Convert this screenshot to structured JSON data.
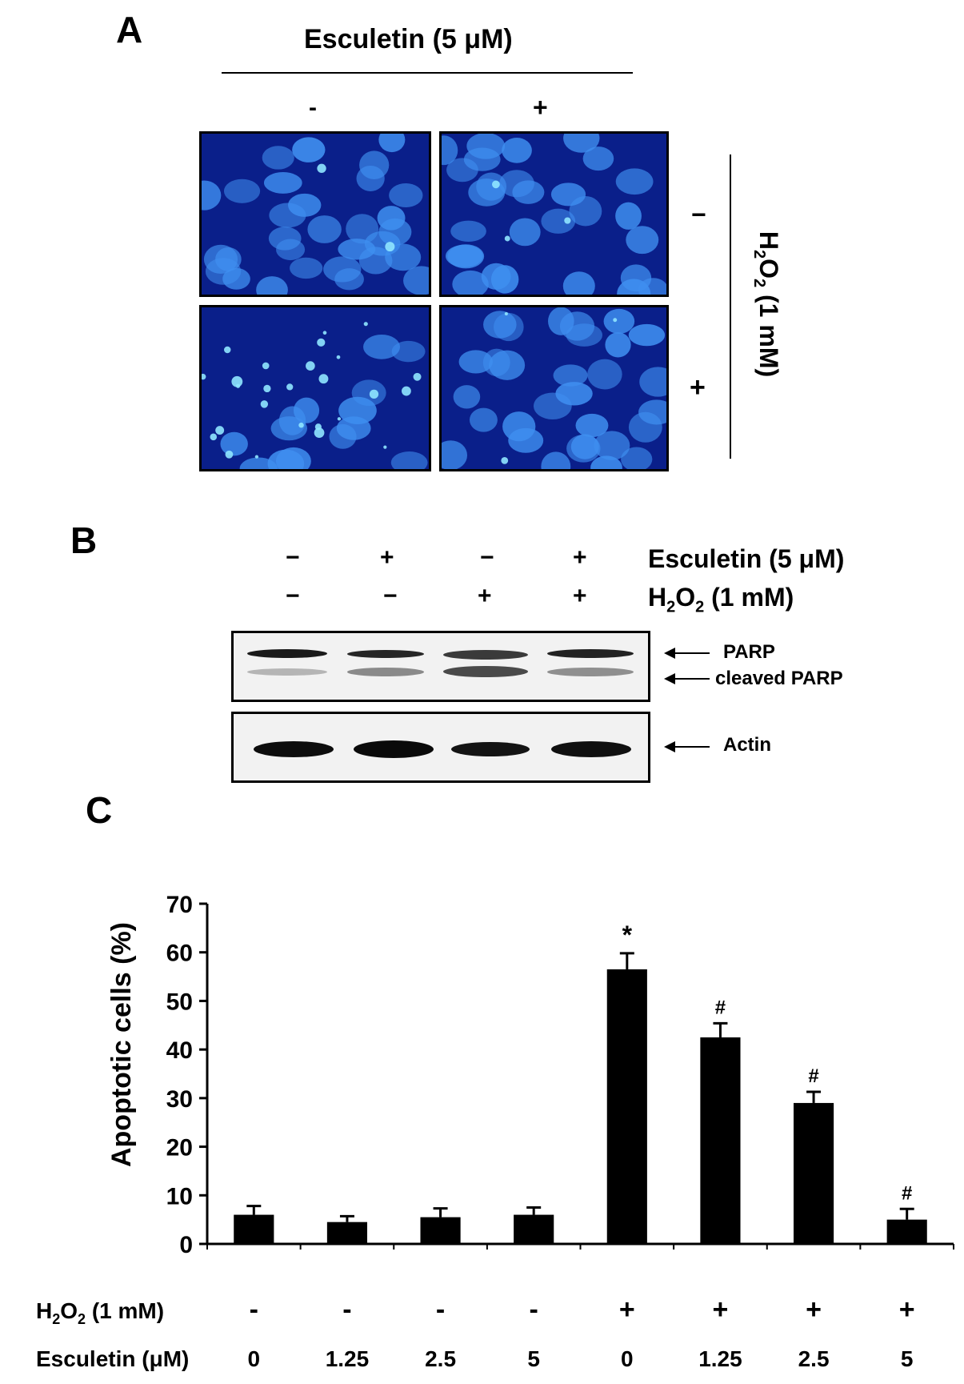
{
  "panel_a": {
    "letter": "A",
    "top_label": "Esculetin (5 μM)",
    "col_minus": "-",
    "col_plus": "+",
    "row_minus": "−",
    "row_plus": "+",
    "side_label_prefix": "H",
    "side_label_sub1": "2",
    "side_label_mid": "O",
    "side_label_sub2": "2",
    "side_label_suffix": " (1 mM)"
  },
  "panel_b": {
    "letter": "B",
    "row1_signs": [
      "−",
      "+",
      "−",
      "+"
    ],
    "row2_signs": [
      "−",
      "−",
      "+",
      "+"
    ],
    "row1_label": "Esculetin (5 μM)",
    "row2_label_prefix": "H",
    "row2_label_sub1": "2",
    "row2_label_mid": "O",
    "row2_label_sub2": "2",
    "row2_label_suffix": " (1 mM)",
    "bands": {
      "parp": "PARP",
      "cleaved": "cleaved PARP",
      "actin": "Actin"
    }
  },
  "panel_c": {
    "letter": "C"
  },
  "colors": {
    "bar": "#000000",
    "nuclei_bg": "#0a1f8a",
    "nuclei": "#3f8ff0"
  },
  "chart_data": {
    "type": "bar",
    "ylabel": "Apoptotic cells  (%)",
    "ylim": [
      0,
      70
    ],
    "yticks": [
      0,
      10,
      20,
      30,
      40,
      50,
      60,
      70
    ],
    "row_labels": {
      "h2o2": {
        "prefix": "H",
        "sub1": "2",
        "mid": "O",
        "sub2": "2",
        "suffix": " (1 mM)"
      },
      "esculetin": "Esculetin (μM)"
    },
    "h2o2": [
      "-",
      "-",
      "-",
      "-",
      "+",
      "+",
      "+",
      "+"
    ],
    "esculetin": [
      "0",
      "1.25",
      "2.5",
      "5",
      "0",
      "1.25",
      "2.5",
      "5"
    ],
    "values": [
      6,
      4.5,
      5.5,
      6,
      56.5,
      42.5,
      29,
      5
    ],
    "errors": [
      1.8,
      1.2,
      1.8,
      1.5,
      3.3,
      2.9,
      2.3,
      2.2
    ],
    "annotations": [
      "",
      "",
      "",
      "",
      "*",
      "#",
      "#",
      "#"
    ]
  }
}
